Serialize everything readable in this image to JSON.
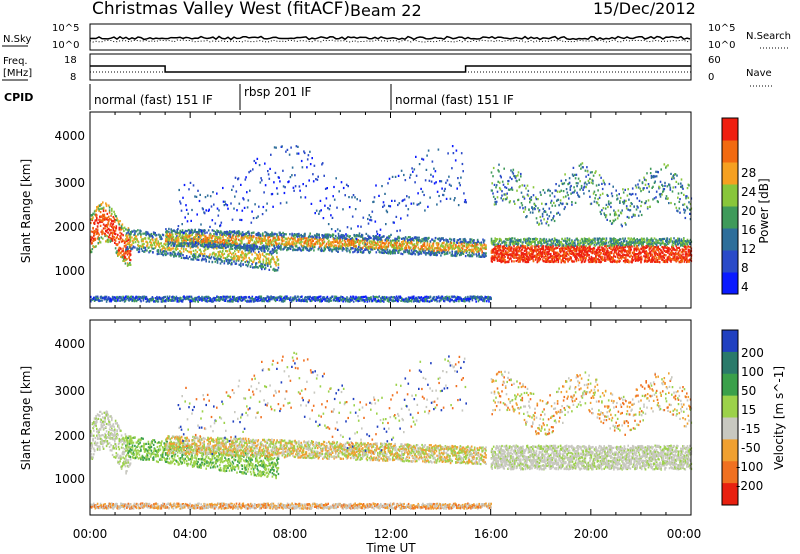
{
  "header": {
    "title": "Christmas Valley West (fitACF)",
    "beam": "Beam 22",
    "date": "15/Dec/2012"
  },
  "nsky_panel": {
    "left_label": "N.Sky",
    "right_label": "N.Search",
    "left_ticks": [
      "10^5",
      "10^0"
    ],
    "right_ticks": [
      "10^5",
      "10^0"
    ]
  },
  "freq_panel": {
    "left_label_1": "Freq.",
    "left_label_2": "[MHz]",
    "right_label": "Nave",
    "left_ticks": [
      "18",
      "8"
    ],
    "right_ticks": [
      "60",
      "0"
    ]
  },
  "cpid": {
    "label": "CPID",
    "segments": [
      {
        "label": "normal (fast) 151 IF",
        "start_hour": 0
      },
      {
        "label": "rbsp 201 IF",
        "start_hour": 6
      },
      {
        "label": "normal (fast) 151 IF",
        "start_hour": 12
      }
    ]
  },
  "power_panel": {
    "ylabel": "Slant Range [km]",
    "cbar_label": "Power [dB]",
    "yticks": [
      "1000",
      "2000",
      "3000",
      "4000"
    ],
    "cbar_ticks": [
      "4",
      "8",
      "12",
      "16",
      "20",
      "24",
      "28"
    ],
    "colors": [
      "#0a1aff",
      "#2a4ac8",
      "#2e6e9a",
      "#3f9a5a",
      "#88c63a",
      "#f5a020",
      "#f26a10",
      "#ef1f10"
    ]
  },
  "velocity_panel": {
    "ylabel": "Slant Range [km]",
    "cbar_label": "Velocity [m s^-1]",
    "yticks": [
      "1000",
      "2000",
      "3000",
      "4000"
    ],
    "cbar_ticks": [
      "200",
      "100",
      "50",
      "15",
      "-15",
      "-50",
      "-100",
      "-200"
    ],
    "colors": [
      "#2040c0",
      "#2a7a6a",
      "#3aa04a",
      "#9cd24a",
      "#c8c8c0",
      "#f0a030",
      "#f07020",
      "#e82010"
    ]
  },
  "x_axis": {
    "label": "Time UT",
    "ticks": [
      "00:00",
      "04:00",
      "08:00",
      "12:00",
      "16:00",
      "20:00",
      "00:00"
    ]
  },
  "chart_data": [
    {
      "type": "line",
      "title": "N.Sky / N.Search",
      "x_range_hours": [
        0,
        24
      ],
      "yscale": "log",
      "ylim": [
        1,
        100000
      ]
    },
    {
      "type": "line",
      "title": "Freq. [MHz] / Nave",
      "x_range_hours": [
        0,
        24
      ],
      "ylim": [
        8,
        18
      ],
      "series": [
        {
          "name": "Freq.",
          "x": [
            0,
            3,
            3,
            15,
            15,
            24
          ],
          "y": [
            13,
            13,
            10,
            10,
            13,
            13
          ]
        }
      ]
    },
    {
      "type": "heatmap",
      "title": "Power [dB]",
      "x_range_hours": [
        0,
        24
      ],
      "ylim": [
        0,
        4500
      ],
      "zlim": [
        0,
        32
      ]
    },
    {
      "type": "heatmap",
      "title": "Velocity [m s^-1]",
      "x_range_hours": [
        0,
        24
      ],
      "ylim": [
        0,
        4500
      ],
      "zlim": [
        -250,
        250
      ]
    }
  ]
}
